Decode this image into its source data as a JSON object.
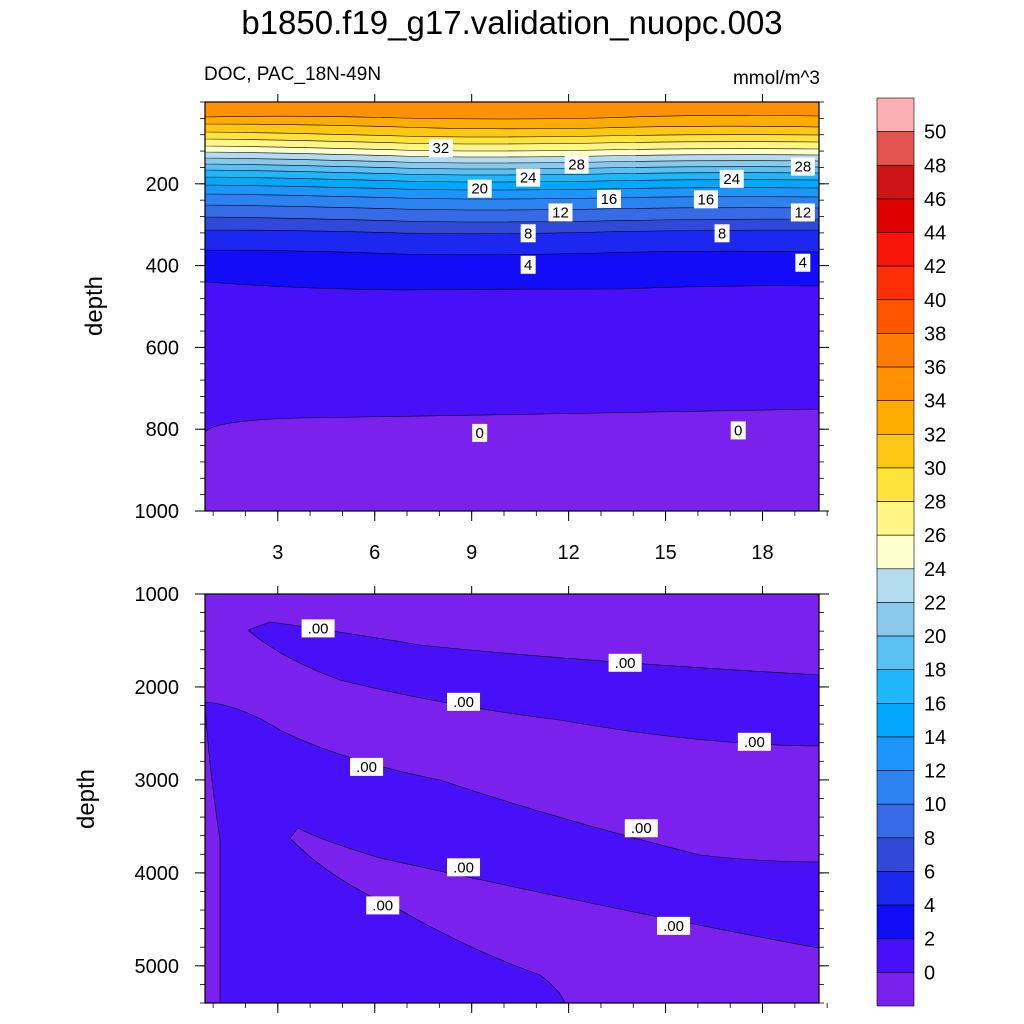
{
  "title": "b1850.f19_g17.validation_nuopc.003",
  "subtitle_left": "DOC, PAC_18N-49N",
  "units": "mmol/m^3",
  "chart_data": [
    {
      "type": "heatmap",
      "panel": "upper",
      "variable": "DOC",
      "region": "PAC_18N-49N",
      "units": "mmol/m^3",
      "ylabel": "depth",
      "y_reversed": true,
      "ylim": [
        0,
        1000
      ],
      "xlim": [
        1,
        20
      ],
      "x_ticks": [
        3,
        6,
        9,
        12,
        15,
        18
      ],
      "y_ticks": [
        200,
        400,
        600,
        800,
        1000
      ],
      "contour_labels": [
        {
          "x": 7.8,
          "y": 113,
          "text": "32"
        },
        {
          "x": 12,
          "y": 153,
          "text": "28"
        },
        {
          "x": 19,
          "y": 158,
          "text": "28"
        },
        {
          "x": 10.5,
          "y": 185,
          "text": "24"
        },
        {
          "x": 16.8,
          "y": 188,
          "text": "24"
        },
        {
          "x": 9,
          "y": 212,
          "text": "20"
        },
        {
          "x": 13,
          "y": 237,
          "text": "16"
        },
        {
          "x": 16,
          "y": 238,
          "text": "16"
        },
        {
          "x": 11.5,
          "y": 270,
          "text": "12"
        },
        {
          "x": 19,
          "y": 270,
          "text": "12"
        },
        {
          "x": 10.5,
          "y": 321,
          "text": "8"
        },
        {
          "x": 16.5,
          "y": 321,
          "text": "8"
        },
        {
          "x": 10.5,
          "y": 398,
          "text": "4"
        },
        {
          "x": 19,
          "y": 393,
          "text": "4"
        },
        {
          "x": 9,
          "y": 809,
          "text": "0"
        },
        {
          "x": 17,
          "y": 803,
          "text": "0"
        }
      ]
    },
    {
      "type": "heatmap",
      "panel": "lower",
      "ylabel": "depth",
      "y_reversed": true,
      "ylim": [
        1000,
        5400
      ],
      "x_ticks": [
        3,
        6,
        9,
        12,
        15,
        18
      ],
      "y_ticks": [
        1000,
        2000,
        3000,
        4000,
        5000
      ],
      "contour_labels": [
        {
          "x": 4,
          "y": 1370,
          "text": ".00"
        },
        {
          "x": 13.5,
          "y": 1740,
          "text": ".00"
        },
        {
          "x": 8.5,
          "y": 2160,
          "text": ".00"
        },
        {
          "x": 17.5,
          "y": 2590,
          "text": ".00"
        },
        {
          "x": 5.5,
          "y": 2860,
          "text": ".00"
        },
        {
          "x": 14,
          "y": 3520,
          "text": ".00"
        },
        {
          "x": 8.5,
          "y": 3940,
          "text": ".00"
        },
        {
          "x": 6,
          "y": 4350,
          "text": ".00"
        },
        {
          "x": 15,
          "y": 4570,
          "text": ".00"
        }
      ]
    }
  ],
  "colorbar": {
    "labels": [
      "50",
      "48",
      "46",
      "44",
      "42",
      "40",
      "38",
      "36",
      "34",
      "32",
      "30",
      "28",
      "26",
      "24",
      "22",
      "20",
      "18",
      "16",
      "14",
      "12",
      "10",
      "8",
      "6",
      "4",
      "2",
      "0"
    ],
    "colors": [
      "#fdb0b3",
      "#e25450",
      "#cc1416",
      "#df0000",
      "#f91308",
      "#ff2e05",
      "#ff5400",
      "#ff7c02",
      "#ff9102",
      "#fdad00",
      "#fdc713",
      "#ffe33d",
      "#fff685",
      "#fffecd",
      "#b4dcf0",
      "#8ac9ec",
      "#59c1f3",
      "#20b6fb",
      "#02a8fd",
      "#1d96fb",
      "#2d82f2",
      "#366ae6",
      "#3148d8",
      "#1c28ef",
      "#120cf9",
      "#4810f8",
      "#7a21ee"
    ]
  }
}
